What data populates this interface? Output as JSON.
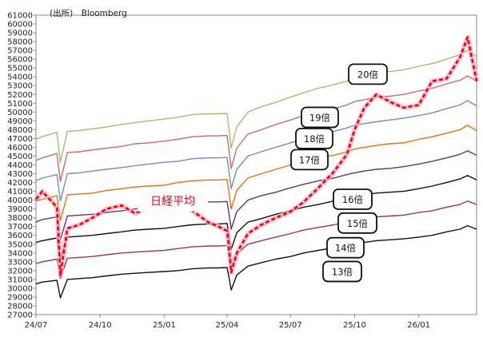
{
  "source": "(出所)　Bloomberg",
  "chart_data": {
    "type": "line",
    "title": "",
    "xlabel": "",
    "ylabel": "",
    "ylim": [
      27000,
      61000
    ],
    "yticks": [
      27000,
      28000,
      29000,
      30000,
      31000,
      32000,
      33000,
      34000,
      35000,
      36000,
      37000,
      38000,
      39000,
      40000,
      41000,
      42000,
      43000,
      44000,
      45000,
      46000,
      47000,
      48000,
      49000,
      50000,
      51000,
      52000,
      53000,
      54000,
      55000,
      56000,
      57000,
      58000,
      59000,
      60000,
      61000
    ],
    "xlim": [
      "2024-07-01",
      "2026-03-25"
    ],
    "xticks": [
      {
        "date": "2024-07-01",
        "label": "24/07"
      },
      {
        "date": "2024-10-01",
        "label": "24/10"
      },
      {
        "date": "2025-01-01",
        "label": "25/01"
      },
      {
        "date": "2025-04-01",
        "label": "25/04"
      },
      {
        "date": "2025-07-01",
        "label": "25/07"
      },
      {
        "date": "2025-10-01",
        "label": "25/10"
      },
      {
        "date": "2026-01-01",
        "label": "26/01"
      }
    ],
    "x": [
      "2024-07-01",
      "2024-07-10",
      "2024-07-31",
      "2024-08-05",
      "2024-08-15",
      "2024-09-01",
      "2024-09-20",
      "2024-10-10",
      "2024-11-01",
      "2024-11-20",
      "2024-12-10",
      "2025-01-01",
      "2025-01-20",
      "2025-02-10",
      "2025-03-05",
      "2025-03-20",
      "2025-04-01",
      "2025-04-04",
      "2025-04-07",
      "2025-04-15",
      "2025-05-01",
      "2025-05-20",
      "2025-06-10",
      "2025-07-01",
      "2025-07-20",
      "2025-08-10",
      "2025-09-01",
      "2025-09-20",
      "2025-10-01",
      "2025-10-15",
      "2025-11-01",
      "2025-11-20",
      "2025-12-10",
      "2026-01-01",
      "2026-01-20",
      "2026-02-10",
      "2026-03-01",
      "2026-03-12",
      "2026-03-25"
    ],
    "series": [
      {
        "name": "日経平均",
        "color": "#e8001c",
        "dashed": true,
        "values": [
          40100,
          41000,
          39200,
          31500,
          36800,
          37200,
          38000,
          39000,
          39400,
          38500,
          39200,
          39800,
          39300,
          38800,
          37500,
          37000,
          36500,
          34500,
          31800,
          34000,
          36200,
          37200,
          38000,
          38700,
          39800,
          41400,
          43200,
          45200,
          48000,
          50500,
          52000,
          51200,
          50500,
          50800,
          53500,
          53800,
          56200,
          58500,
          53500
        ]
      },
      {
        "name": "13倍",
        "color": "#111111",
        "values": [
          30500,
          30700,
          30900,
          28900,
          31000,
          31100,
          31200,
          31400,
          31600,
          31700,
          31800,
          31900,
          32000,
          32200,
          32300,
          32300,
          32350,
          31200,
          29800,
          31500,
          32500,
          32900,
          33300,
          33600,
          34000,
          34300,
          34600,
          34800,
          35000,
          35200,
          35400,
          35500,
          35600,
          35800,
          36000,
          36400,
          36700,
          37100,
          36700
        ]
      },
      {
        "name": "14倍",
        "color": "#9e3b3b",
        "values": [
          32800,
          33000,
          33300,
          31100,
          33400,
          33500,
          33600,
          33800,
          34000,
          34100,
          34200,
          34300,
          34500,
          34700,
          34800,
          34800,
          34850,
          33600,
          32100,
          33900,
          35000,
          35400,
          35800,
          36200,
          36600,
          36900,
          37200,
          37500,
          37700,
          37900,
          38100,
          38200,
          38300,
          38600,
          38800,
          39200,
          39500,
          39900,
          39500
        ]
      },
      {
        "name": "15倍",
        "color": "#111111",
        "values": [
          35200,
          35400,
          35700,
          33300,
          35800,
          35900,
          36000,
          36200,
          36400,
          36600,
          36700,
          36800,
          37000,
          37200,
          37300,
          37300,
          37350,
          36000,
          34400,
          36300,
          37500,
          37900,
          38400,
          38800,
          39200,
          39500,
          39900,
          40200,
          40400,
          40600,
          40800,
          40900,
          41000,
          41300,
          41600,
          42000,
          42400,
          42800,
          42300
        ]
      },
      {
        "name": "16倍",
        "color": "#60338a",
        "values": [
          37500,
          37800,
          38100,
          35500,
          38200,
          38300,
          38400,
          38600,
          38800,
          39000,
          39100,
          39300,
          39500,
          39700,
          39800,
          39800,
          39850,
          38400,
          36700,
          38700,
          40000,
          40500,
          40900,
          41400,
          41800,
          42200,
          42500,
          42900,
          43100,
          43300,
          43500,
          43600,
          43800,
          44100,
          44400,
          44800,
          45200,
          45600,
          45100
        ]
      },
      {
        "name": "17倍",
        "color": "#e0730a",
        "values": [
          39900,
          40100,
          40500,
          37700,
          40600,
          40700,
          40800,
          41100,
          41300,
          41500,
          41600,
          41700,
          42000,
          42200,
          42300,
          42300,
          42350,
          40800,
          39000,
          41100,
          42500,
          43000,
          43500,
          44000,
          44400,
          44800,
          45100,
          45500,
          45800,
          46000,
          46200,
          46400,
          46500,
          46900,
          47200,
          47600,
          48000,
          48500,
          47900
        ]
      },
      {
        "name": "18倍",
        "color": "#6f8fc0",
        "values": [
          42200,
          42500,
          42900,
          39900,
          43000,
          43100,
          43300,
          43500,
          43700,
          43900,
          44100,
          44300,
          44400,
          44700,
          44800,
          44800,
          44850,
          43200,
          41300,
          43500,
          45000,
          45500,
          46000,
          46500,
          47000,
          47400,
          47800,
          48200,
          48500,
          48700,
          48900,
          49100,
          49300,
          49600,
          49900,
          50400,
          50800,
          51300,
          50700
        ]
      },
      {
        "name": "19倍",
        "color": "#c96c6c",
        "values": [
          44500,
          44800,
          45300,
          42100,
          45400,
          45500,
          45700,
          45900,
          46100,
          46400,
          46500,
          46700,
          46900,
          47200,
          47300,
          47300,
          47350,
          45600,
          43600,
          45900,
          47500,
          48000,
          48600,
          49100,
          49600,
          50000,
          50400,
          50800,
          51200,
          51400,
          51700,
          51800,
          52000,
          52400,
          52700,
          53200,
          53600,
          54100,
          53500
        ]
      },
      {
        "name": "20倍",
        "color": "#9fbf6a",
        "values": [
          46900,
          47200,
          47700,
          44300,
          47800,
          47900,
          48100,
          48300,
          48600,
          48800,
          49000,
          49200,
          49400,
          49700,
          49800,
          49800,
          49850,
          48000,
          45900,
          48300,
          50000,
          50600,
          51100,
          51700,
          52200,
          52700,
          53100,
          53500,
          53900,
          54100,
          54400,
          54600,
          54800,
          55200,
          55500,
          56000,
          56500,
          57000,
          56300
        ]
      }
    ]
  },
  "callouts": [
    {
      "text": "日経平均",
      "y": 39900
    },
    {
      "text": "20倍",
      "y": 54300
    },
    {
      "text": "19倍",
      "y": 49400
    },
    {
      "text": "18倍",
      "y": 47000
    },
    {
      "text": "17倍",
      "y": 44600
    },
    {
      "text": "16倍",
      "y": 40100
    },
    {
      "text": "15倍",
      "y": 37400
    },
    {
      "text": "14倍",
      "y": 34600
    },
    {
      "text": "13倍",
      "y": 31900
    }
  ]
}
